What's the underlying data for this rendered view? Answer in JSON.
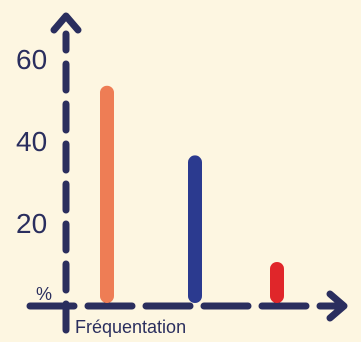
{
  "chart_data": {
    "type": "bar",
    "categories": [
      "",
      "",
      ""
    ],
    "values": [
      53,
      36,
      10
    ],
    "colors": [
      "#ee7d55",
      "#2b3a8f",
      "#e0262a"
    ],
    "xlabel": "Fréquentation",
    "ylabel": "",
    "y_unit": "%",
    "ylim": [
      0,
      70
    ],
    "y_ticks": [
      20,
      40,
      60
    ],
    "y_tick_labels": [
      "20",
      "40",
      "60"
    ],
    "grid": false,
    "legend": "none",
    "axis_color": "#2a2e5e",
    "background": "#fdf6e1"
  }
}
